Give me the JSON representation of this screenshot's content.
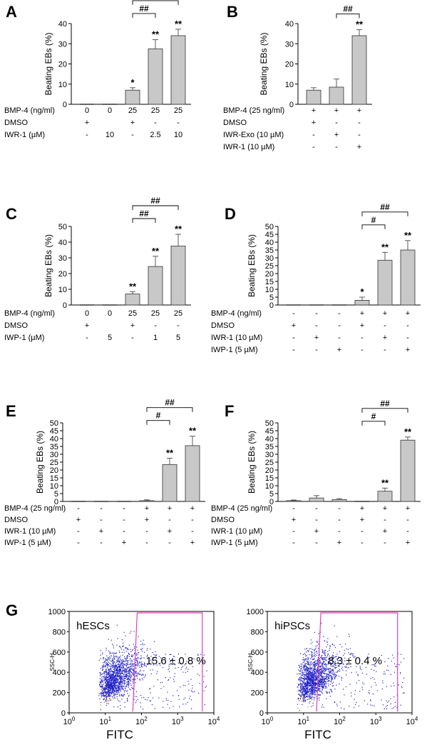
{
  "panels": {
    "A": {
      "letter": "A",
      "ylabel": "Beating EBs (%)",
      "yticks": [
        "0",
        "10",
        "20",
        "30",
        "40"
      ],
      "ylim": [
        0,
        40
      ],
      "values": [
        0,
        0,
        7,
        27.5,
        34
      ],
      "errors": [
        0,
        0,
        1.2,
        4.5,
        3.2
      ],
      "stars": [
        "",
        "",
        "*",
        "**",
        "**"
      ],
      "brackets": [
        {
          "from": 2,
          "to": 3,
          "label": "##"
        },
        {
          "from": 2,
          "to": 4,
          "label": "##"
        }
      ],
      "rows": [
        {
          "label": "BMP-4 (ng/ml)",
          "cells": [
            "0",
            "0",
            "25",
            "25",
            "25"
          ]
        },
        {
          "label": "DMSO",
          "cells": [
            "+",
            "",
            "+",
            "-",
            "-"
          ]
        },
        {
          "label": "IWR-1 (µM)",
          "cells": [
            "-",
            "10",
            "-",
            "2.5",
            "10"
          ]
        }
      ]
    },
    "B": {
      "letter": "B",
      "ylabel": "Beating EBs (%)",
      "yticks": [
        "0",
        "10",
        "20",
        "30",
        "40"
      ],
      "ylim": [
        0,
        40
      ],
      "values": [
        7,
        8.5,
        34
      ],
      "errors": [
        1.2,
        4,
        3
      ],
      "stars": [
        "",
        "",
        "**"
      ],
      "brackets": [
        {
          "from": 1,
          "to": 2,
          "label": "##"
        }
      ],
      "rows": [
        {
          "label": "BMP-4 (25 ng/ml)",
          "cells": [
            "+",
            "+",
            "+"
          ]
        },
        {
          "label": "DMSO",
          "cells": [
            "+",
            "-",
            "-"
          ]
        },
        {
          "label": "IWR-Exo (10 µM)",
          "cells": [
            "-",
            "+",
            "-"
          ]
        },
        {
          "label": "IWR-1 (10 µM)",
          "cells": [
            "-",
            "-",
            "+"
          ]
        }
      ]
    },
    "C": {
      "letter": "C",
      "ylabel": "Beating EBs (%)",
      "yticks": [
        "0",
        "10",
        "20",
        "30",
        "40",
        "50"
      ],
      "ylim": [
        0,
        50
      ],
      "values": [
        0,
        0,
        7,
        24.5,
        37.5
      ],
      "errors": [
        0,
        0,
        1.5,
        6.5,
        7.5
      ],
      "stars": [
        "",
        "",
        "**",
        "**",
        "**"
      ],
      "brackets": [
        {
          "from": 2,
          "to": 3,
          "label": "##"
        },
        {
          "from": 2,
          "to": 4,
          "label": "##"
        }
      ],
      "rows": [
        {
          "label": "BMP-4 (ng/ml)",
          "cells": [
            "0",
            "0",
            "25",
            "25",
            "25"
          ]
        },
        {
          "label": "DMSO",
          "cells": [
            "+",
            "",
            "+",
            "-",
            "-"
          ]
        },
        {
          "label": "IWP-1 (µM)",
          "cells": [
            "-",
            "5",
            "-",
            "1",
            "5"
          ]
        }
      ]
    },
    "D": {
      "letter": "D",
      "ylabel": "Beating EBs (%)",
      "yticks": [
        "0",
        "5",
        "10",
        "15",
        "20",
        "25",
        "30",
        "35",
        "40",
        "45",
        "50"
      ],
      "ylim": [
        0,
        50
      ],
      "values": [
        0,
        0,
        0,
        3,
        28.5,
        35
      ],
      "errors": [
        0,
        0,
        0,
        2,
        5,
        6
      ],
      "stars": [
        "",
        "",
        "",
        "*",
        "**",
        "**"
      ],
      "brackets": [
        {
          "from": 3,
          "to": 4,
          "label": "#"
        },
        {
          "from": 3,
          "to": 5,
          "label": "##"
        }
      ],
      "rows": [
        {
          "label": "BMP-4 (ng/ml)",
          "cells": [
            "-",
            "-",
            "-",
            "+",
            "+",
            "+"
          ]
        },
        {
          "label": "DMSO",
          "cells": [
            "+",
            "-",
            "-",
            "+",
            "-",
            "-"
          ]
        },
        {
          "label": "IWR-1 (10 µM)",
          "cells": [
            "-",
            "+",
            "-",
            "-",
            "+",
            "-"
          ]
        },
        {
          "label": "IWP-1 (5 µM)",
          "cells": [
            "-",
            "-",
            "+",
            "-",
            "-",
            "+"
          ]
        }
      ]
    },
    "E": {
      "letter": "E",
      "ylabel": "Beating EBs (%)",
      "yticks": [
        "0",
        "5",
        "10",
        "15",
        "20",
        "25",
        "30",
        "35",
        "40",
        "45",
        "50"
      ],
      "ylim": [
        0,
        50
      ],
      "values": [
        0,
        0,
        0,
        0.5,
        23.5,
        35.5
      ],
      "errors": [
        0,
        0,
        0,
        0.5,
        4,
        6
      ],
      "stars": [
        "",
        "",
        "",
        "",
        "**",
        "**"
      ],
      "brackets": [
        {
          "from": 3,
          "to": 4,
          "label": "#"
        },
        {
          "from": 3,
          "to": 5,
          "label": "##"
        }
      ],
      "rows": [
        {
          "label": "BMP-4 (25 ng/ml)",
          "cells": [
            "-",
            "-",
            "-",
            "+",
            "+",
            "+"
          ]
        },
        {
          "label": "DMSO",
          "cells": [
            "+",
            "-",
            "-",
            "+",
            "-",
            "-"
          ]
        },
        {
          "label": "IWR-1 (10 µM)",
          "cells": [
            "-",
            "+",
            "-",
            "-",
            "+",
            "-"
          ]
        },
        {
          "label": "IWP-1 (5 µM)",
          "cells": [
            "-",
            "-",
            "+",
            "-",
            "-",
            "+"
          ]
        }
      ]
    },
    "F": {
      "letter": "F",
      "ylabel": "Beating EBs (%)",
      "yticks": [
        "0",
        "5",
        "10",
        "15",
        "20",
        "25",
        "30",
        "35",
        "40",
        "45",
        "50"
      ],
      "ylim": [
        0,
        50
      ],
      "values": [
        0.5,
        2.2,
        1.2,
        0,
        6.5,
        39
      ],
      "errors": [
        0.4,
        1.5,
        0.6,
        0,
        2,
        2
      ],
      "stars": [
        "",
        "",
        "",
        "",
        "**",
        "**"
      ],
      "brackets": [
        {
          "from": 3,
          "to": 4,
          "label": "#"
        },
        {
          "from": 3,
          "to": 5,
          "label": "##"
        }
      ],
      "rows": [
        {
          "label": "BMP-4 (25 ng/ml)",
          "cells": [
            "-",
            "-",
            "-",
            "+",
            "+",
            "+"
          ]
        },
        {
          "label": "DMSO",
          "cells": [
            "+",
            "-",
            "-",
            "+",
            "-",
            "-"
          ]
        },
        {
          "label": "IWR-1 (10 µM)",
          "cells": [
            "-",
            "+",
            "-",
            "-",
            "+",
            "-"
          ]
        },
        {
          "label": "IWP-1 (5 µM)",
          "cells": [
            "-",
            "-",
            "+",
            "-",
            "-",
            "+"
          ]
        }
      ]
    }
  },
  "flow": {
    "letter": "G",
    "ylabel": "SSC-H",
    "xlabel": "FITC",
    "yticks": [
      "0",
      "200",
      "400",
      "600",
      "800",
      "1000"
    ],
    "xticks": [
      {
        "base": "10",
        "exp": "0"
      },
      {
        "base": "10",
        "exp": "1"
      },
      {
        "base": "10",
        "exp": "2"
      },
      {
        "base": "10",
        "exp": "3"
      },
      {
        "base": "10",
        "exp": "4"
      }
    ],
    "plots": [
      {
        "name": "hESCs",
        "gate_value": "15.6 ± 0.8 %"
      },
      {
        "name": "hiPSCs",
        "gate_value": "8.3 ± 0.4 %"
      }
    ],
    "colors": {
      "dots": "#2020c8",
      "gate": "#e040c0",
      "core": "#d08020"
    }
  },
  "chart_data": [
    {
      "type": "bar",
      "title": "A",
      "ylabel": "Beating EBs (%)",
      "ylim": [
        0,
        40
      ],
      "categories": [
        "1",
        "2",
        "3",
        "4",
        "5"
      ],
      "values": [
        0,
        0,
        7,
        27.5,
        34
      ],
      "errors": [
        0,
        0,
        1.2,
        4.5,
        3.2
      ]
    },
    {
      "type": "bar",
      "title": "B",
      "ylabel": "Beating EBs (%)",
      "ylim": [
        0,
        40
      ],
      "categories": [
        "1",
        "2",
        "3"
      ],
      "values": [
        7,
        8.5,
        34
      ],
      "errors": [
        1.2,
        4,
        3
      ]
    },
    {
      "type": "bar",
      "title": "C",
      "ylabel": "Beating EBs (%)",
      "ylim": [
        0,
        50
      ],
      "categories": [
        "1",
        "2",
        "3",
        "4",
        "5"
      ],
      "values": [
        0,
        0,
        7,
        24.5,
        37.5
      ],
      "errors": [
        0,
        0,
        1.5,
        6.5,
        7.5
      ]
    },
    {
      "type": "bar",
      "title": "D",
      "ylabel": "Beating EBs (%)",
      "ylim": [
        0,
        50
      ],
      "categories": [
        "1",
        "2",
        "3",
        "4",
        "5",
        "6"
      ],
      "values": [
        0,
        0,
        0,
        3,
        28.5,
        35
      ],
      "errors": [
        0,
        0,
        0,
        2,
        5,
        6
      ]
    },
    {
      "type": "bar",
      "title": "E",
      "ylabel": "Beating EBs (%)",
      "ylim": [
        0,
        50
      ],
      "categories": [
        "1",
        "2",
        "3",
        "4",
        "5",
        "6"
      ],
      "values": [
        0,
        0,
        0,
        0.5,
        23.5,
        35.5
      ],
      "errors": [
        0,
        0,
        0,
        0.5,
        4,
        6
      ]
    },
    {
      "type": "bar",
      "title": "F",
      "ylabel": "Beating EBs (%)",
      "ylim": [
        0,
        50
      ],
      "categories": [
        "1",
        "2",
        "3",
        "4",
        "5",
        "6"
      ],
      "values": [
        0.5,
        2.2,
        1.2,
        0,
        6.5,
        39
      ],
      "errors": [
        0.4,
        1.5,
        0.6,
        0,
        2,
        2
      ]
    },
    {
      "type": "scatter",
      "title": "G",
      "xlabel": "FITC",
      "ylabel": "SSC-H",
      "xscale": "log",
      "xlim": [
        1,
        10000
      ],
      "ylim": [
        0,
        1000
      ],
      "series": [
        {
          "name": "hESCs"
        },
        {
          "name": "hiPSCs"
        }
      ]
    }
  ]
}
